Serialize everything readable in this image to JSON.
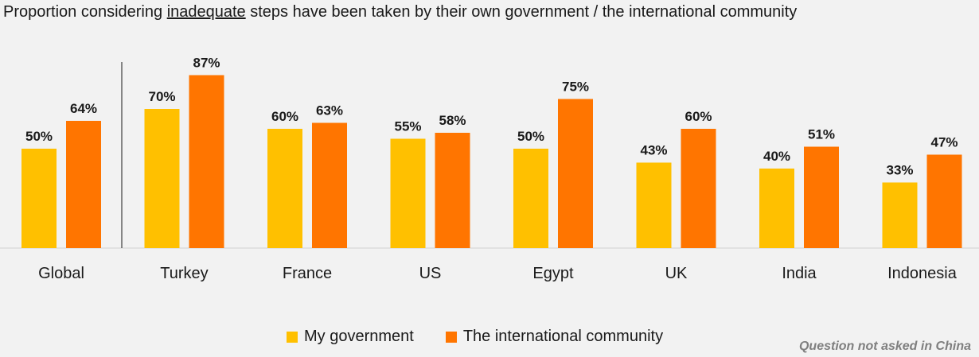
{
  "title": {
    "prefix": "Proportion considering ",
    "emphasis": "inadequate",
    "suffix": " steps have been taken by their own government / the international community"
  },
  "footnote": "Question not asked in China",
  "colors": {
    "my_government": "#ffc000",
    "international_community": "#ff7500",
    "background": "#f2f2f2"
  },
  "chart_data": {
    "type": "bar",
    "title": "Proportion considering inadequate steps have been taken by their own government / the international community",
    "categories": [
      "Global",
      "Turkey",
      "France",
      "US",
      "Egypt",
      "UK",
      "India",
      "Indonesia"
    ],
    "series": [
      {
        "name": "My government",
        "values": [
          50,
          70,
          60,
          55,
          50,
          43,
          40,
          33
        ],
        "labels": [
          "50%",
          "70%",
          "60%",
          "55%",
          "50%",
          "43%",
          "40%",
          "33%"
        ]
      },
      {
        "name": "The international community",
        "values": [
          64,
          87,
          63,
          58,
          75,
          60,
          51,
          47
        ],
        "labels": [
          "64%",
          "87%",
          "63%",
          "58%",
          "75%",
          "60%",
          "51%",
          "47%"
        ]
      }
    ],
    "ylim": [
      0,
      100
    ],
    "grid": false,
    "legend_position": "bottom"
  }
}
